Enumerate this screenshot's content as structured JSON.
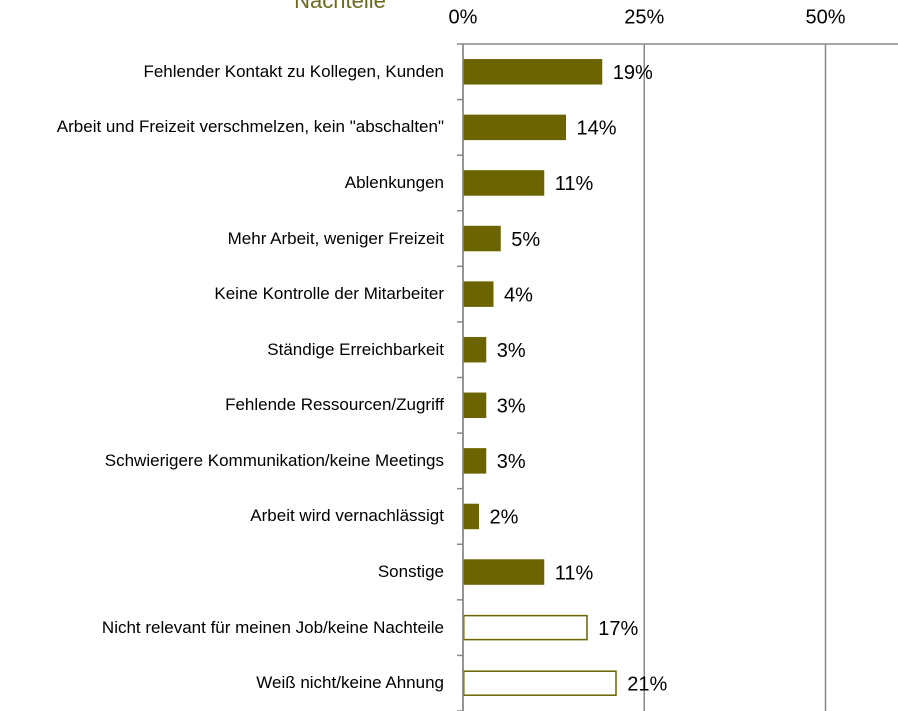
{
  "chart_data": {
    "type": "barh",
    "title": "Nachteile",
    "categories": [
      "Fehlender Kontakt zu Kollegen, Kunden",
      "Arbeit und Freizeit verschmelzen, kein \"abschalten\"",
      "Ablenkungen",
      "Mehr Arbeit, weniger Freizeit",
      "Keine Kontrolle der Mitarbeiter",
      "Ständige Erreichbarkeit",
      "Fehlende Ressourcen/Zugriff",
      "Schwierigere Kommunikation/keine Meetings",
      "Arbeit wird vernachlässigt",
      "Sonstige",
      "Nicht relevant für meinen Job/keine Nachteile",
      "Weiß nicht/keine Ahnung"
    ],
    "values": [
      19,
      14,
      11,
      5,
      4,
      3,
      3,
      3,
      2,
      11,
      17,
      21
    ],
    "value_labels": [
      "19%",
      "14%",
      "11%",
      "5%",
      "4%",
      "3%",
      "3%",
      "3%",
      "2%",
      "11%",
      "17%",
      "21%"
    ],
    "colors": [
      "#6b6400",
      "#6b6400",
      "#6b6400",
      "#6b6400",
      "#6b6400",
      "#6b6400",
      "#6b6400",
      "#6b6400",
      "#6b6400",
      "#6b6400",
      "#ffffff",
      "#ffffff"
    ],
    "edgecolor": "#6b6400",
    "xlim": [
      0,
      60
    ],
    "xticks": [
      {
        "value": 0,
        "label": "0%"
      },
      {
        "value": 25,
        "label": "25%"
      },
      {
        "value": 50,
        "label": "50%"
      }
    ],
    "grid": true
  }
}
